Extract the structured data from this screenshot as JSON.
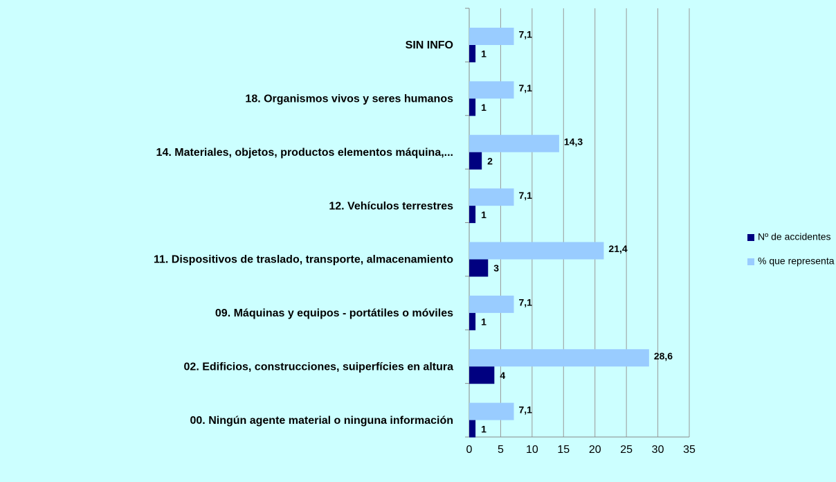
{
  "chart_data": {
    "type": "bar",
    "orientation": "horizontal",
    "categories": [
      "SIN INFO",
      "18. Organismos vivos y seres humanos",
      "14. Materiales, objetos, productos elementos máquina,...",
      "12. Vehículos terrestres",
      "11. Dispositivos de traslado, transporte, almacenamiento",
      "09. Máquinas y equipos - portátiles o móviles",
      "02. Edificios, construcciones, suiperfícies en altura",
      "00. Ningún agente material o ninguna información"
    ],
    "series": [
      {
        "name": "Nº de accidentes",
        "color": "#000080",
        "values": [
          1,
          1,
          2,
          1,
          3,
          1,
          4,
          1
        ]
      },
      {
        "name": "% que representa",
        "color": "#99ccff",
        "values": [
          7.1,
          7.1,
          14.3,
          7.1,
          21.4,
          7.1,
          28.6,
          7.1
        ],
        "value_labels": [
          "7,1",
          "7,1",
          "14,3",
          "7,1",
          "21,4",
          "7,1",
          "28,6",
          "7,1"
        ]
      }
    ],
    "xlim": [
      0,
      35
    ],
    "xticks": [
      0,
      5,
      10,
      15,
      20,
      25,
      30,
      35
    ],
    "grid": true,
    "legend": "right"
  }
}
